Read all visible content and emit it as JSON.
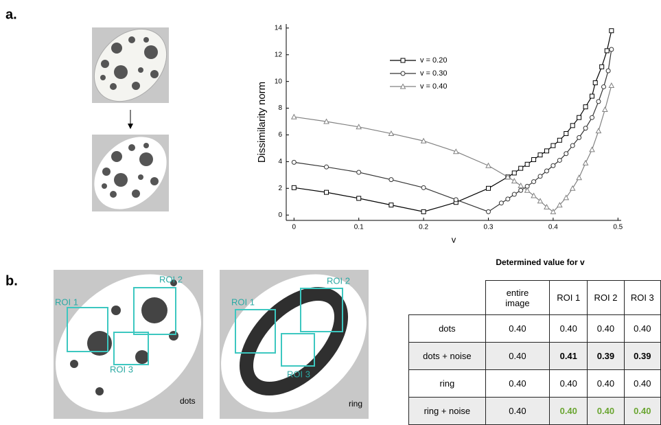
{
  "panel_labels": [
    "a.",
    "b."
  ],
  "chart_data": {
    "type": "line",
    "xlabel": "v",
    "ylabel": "Dissimilarity norm",
    "xlim": [
      -0.012,
      0.505
    ],
    "ylim": [
      -0.4,
      14.3
    ],
    "xticks": [
      0,
      0.1,
      0.2,
      0.3,
      0.4,
      0.5
    ],
    "yticks": [
      0,
      2,
      4,
      6,
      8,
      10,
      12,
      14
    ],
    "series": [
      {
        "name": "v = 0.20",
        "color": "#000000",
        "marker": "square",
        "x": [
          0,
          0.05,
          0.1,
          0.15,
          0.2,
          0.25,
          0.3,
          0.33,
          0.34,
          0.35,
          0.36,
          0.37,
          0.38,
          0.39,
          0.4,
          0.41,
          0.42,
          0.43,
          0.44,
          0.45,
          0.46,
          0.465,
          0.475,
          0.483,
          0.49
        ],
        "values": [
          2.05,
          1.7,
          1.25,
          0.75,
          0.25,
          0.95,
          2.0,
          2.85,
          3.15,
          3.5,
          3.8,
          4.15,
          4.5,
          4.8,
          5.2,
          5.6,
          6.1,
          6.7,
          7.3,
          8.1,
          8.9,
          9.9,
          11.1,
          12.3,
          13.8
        ]
      },
      {
        "name": "v = 0.30",
        "color": "#333333",
        "marker": "circle",
        "x": [
          0,
          0.05,
          0.1,
          0.15,
          0.2,
          0.25,
          0.3,
          0.32,
          0.33,
          0.34,
          0.35,
          0.36,
          0.37,
          0.38,
          0.39,
          0.4,
          0.41,
          0.42,
          0.43,
          0.44,
          0.45,
          0.46,
          0.47,
          0.478,
          0.485,
          0.49
        ],
        "values": [
          3.95,
          3.6,
          3.2,
          2.65,
          2.05,
          1.15,
          0.25,
          0.9,
          1.2,
          1.55,
          1.85,
          2.15,
          2.5,
          2.9,
          3.3,
          3.7,
          4.1,
          4.6,
          5.2,
          5.8,
          6.5,
          7.3,
          8.5,
          9.6,
          10.8,
          12.4
        ]
      },
      {
        "name": "v = 0.40",
        "color": "#808080",
        "marker": "triangle",
        "x": [
          0,
          0.05,
          0.1,
          0.15,
          0.2,
          0.25,
          0.3,
          0.33,
          0.34,
          0.35,
          0.36,
          0.37,
          0.38,
          0.39,
          0.4,
          0.41,
          0.42,
          0.43,
          0.44,
          0.45,
          0.46,
          0.47,
          0.48,
          0.49
        ],
        "values": [
          7.35,
          7.0,
          6.6,
          6.1,
          5.55,
          4.75,
          3.7,
          2.85,
          2.55,
          2.2,
          1.85,
          1.45,
          1.05,
          0.6,
          0.25,
          0.75,
          1.3,
          2.0,
          2.8,
          3.9,
          4.9,
          6.3,
          7.9,
          9.7
        ]
      }
    ]
  },
  "images": [
    {
      "caption": "dots",
      "rois": [
        "ROI 1",
        "ROI 2",
        "ROI 3"
      ]
    },
    {
      "caption": "ring",
      "rois": [
        "ROI 1",
        "ROI 2",
        "ROI 3"
      ]
    }
  ],
  "table": {
    "title": "Determined value for v",
    "header": [
      null,
      "entire image",
      "ROI 1",
      "ROI 2",
      "ROI 3"
    ],
    "rows": [
      [
        "dots",
        "0.40",
        "0.40",
        "0.40",
        "0.40"
      ],
      [
        "dots + noise",
        "0.40",
        "0.41",
        "0.39",
        "0.39"
      ],
      [
        "ring",
        "0.40",
        "0.40",
        "0.40",
        "0.40"
      ],
      [
        "ring + noise",
        "0.40",
        "0.40",
        "0.40",
        "0.40"
      ]
    ]
  }
}
